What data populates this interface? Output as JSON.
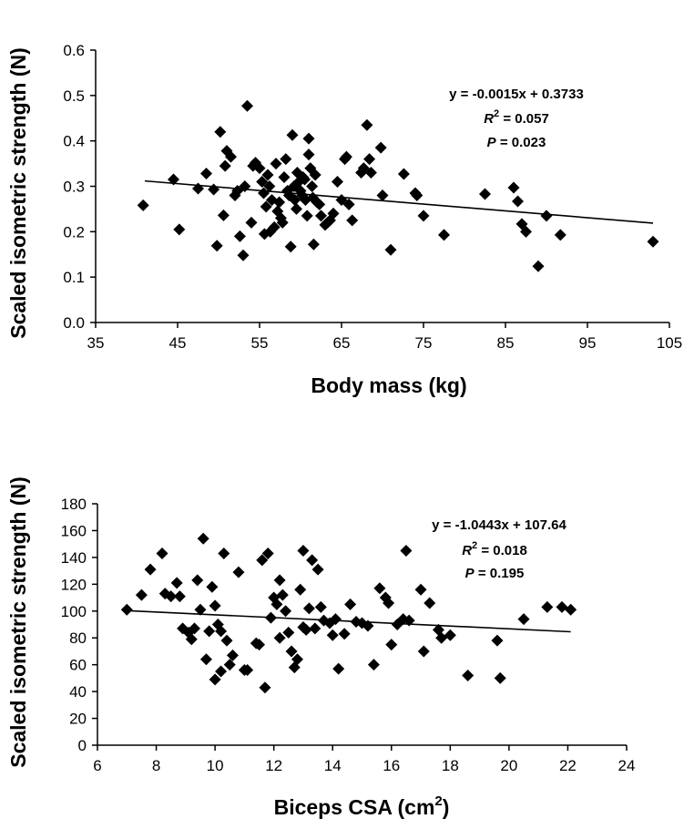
{
  "charts": [
    {
      "type": "scatter",
      "ylabel": "Scaled isometric strength (N)",
      "xlabel": "Body mass (kg)",
      "xlim": [
        35,
        105
      ],
      "ylim": [
        0,
        0.6
      ],
      "xticks": [
        "35",
        "45",
        "55",
        "65",
        "75",
        "85",
        "95",
        "105"
      ],
      "yticks": [
        "0.0",
        "0.1",
        "0.2",
        "0.3",
        "0.4",
        "0.5",
        "0.6"
      ],
      "equation": "y = -0.0015x + 0.3733",
      "r2_prefix": "R",
      "r2_sup": "2",
      "r2_value": " = 0.057",
      "p_prefix": "P",
      "p_value": " = 0.023",
      "trendline": {
        "slope": -0.0015,
        "intercept": 0.3733,
        "x_from": 41,
        "x_to": 103
      },
      "points": [
        [
          40.8,
          0.258
        ],
        [
          44.5,
          0.315
        ],
        [
          45.2,
          0.205
        ],
        [
          47.5,
          0.295
        ],
        [
          48.5,
          0.328
        ],
        [
          49.4,
          0.293
        ],
        [
          49.8,
          0.169
        ],
        [
          50.2,
          0.42
        ],
        [
          50.6,
          0.236
        ],
        [
          50.8,
          0.345
        ],
        [
          51.0,
          0.378
        ],
        [
          51.5,
          0.365
        ],
        [
          52.0,
          0.28
        ],
        [
          52.3,
          0.29
        ],
        [
          52.6,
          0.19
        ],
        [
          53.0,
          0.148
        ],
        [
          53.2,
          0.3
        ],
        [
          53.5,
          0.477
        ],
        [
          54.0,
          0.22
        ],
        [
          54.2,
          0.345
        ],
        [
          54.5,
          0.352
        ],
        [
          55.0,
          0.34
        ],
        [
          55.3,
          0.31
        ],
        [
          55.5,
          0.285
        ],
        [
          55.6,
          0.195
        ],
        [
          55.8,
          0.255
        ],
        [
          56.0,
          0.325
        ],
        [
          56.2,
          0.3
        ],
        [
          56.3,
          0.2
        ],
        [
          56.5,
          0.27
        ],
        [
          56.8,
          0.21
        ],
        [
          57.0,
          0.35
        ],
        [
          57.2,
          0.245
        ],
        [
          57.4,
          0.265
        ],
        [
          57.6,
          0.23
        ],
        [
          57.8,
          0.22
        ],
        [
          58.0,
          0.32
        ],
        [
          58.2,
          0.36
        ],
        [
          58.4,
          0.29
        ],
        [
          58.6,
          0.28
        ],
        [
          58.8,
          0.167
        ],
        [
          59.0,
          0.413
        ],
        [
          59.2,
          0.3
        ],
        [
          59.3,
          0.27
        ],
        [
          59.5,
          0.25
        ],
        [
          59.6,
          0.33
        ],
        [
          59.8,
          0.31
        ],
        [
          60.0,
          0.29
        ],
        [
          60.2,
          0.28
        ],
        [
          60.3,
          0.32
        ],
        [
          60.5,
          0.315
        ],
        [
          60.6,
          0.27
        ],
        [
          60.8,
          0.235
        ],
        [
          61.0,
          0.405
        ],
        [
          61.0,
          0.37
        ],
        [
          61.2,
          0.34
        ],
        [
          61.4,
          0.3
        ],
        [
          61.5,
          0.275
        ],
        [
          61.6,
          0.172
        ],
        [
          61.8,
          0.325
        ],
        [
          62.0,
          0.265
        ],
        [
          62.3,
          0.26
        ],
        [
          62.5,
          0.235
        ],
        [
          63.0,
          0.215
        ],
        [
          63.3,
          0.22
        ],
        [
          63.6,
          0.225
        ],
        [
          64.0,
          0.24
        ],
        [
          64.5,
          0.31
        ],
        [
          65.0,
          0.27
        ],
        [
          65.4,
          0.36
        ],
        [
          65.6,
          0.365
        ],
        [
          65.9,
          0.26
        ],
        [
          66.3,
          0.225
        ],
        [
          67.4,
          0.33
        ],
        [
          67.7,
          0.34
        ],
        [
          68.1,
          0.435
        ],
        [
          68.4,
          0.36
        ],
        [
          68.6,
          0.33
        ],
        [
          69.8,
          0.385
        ],
        [
          70.0,
          0.28
        ],
        [
          71.0,
          0.16
        ],
        [
          72.6,
          0.327
        ],
        [
          74.0,
          0.285
        ],
        [
          74.2,
          0.28
        ],
        [
          75.0,
          0.235
        ],
        [
          77.5,
          0.193
        ],
        [
          82.5,
          0.283
        ],
        [
          86.0,
          0.297
        ],
        [
          86.5,
          0.267
        ],
        [
          87.0,
          0.217
        ],
        [
          87.5,
          0.2
        ],
        [
          89.0,
          0.124
        ],
        [
          90.0,
          0.235
        ],
        [
          91.7,
          0.193
        ],
        [
          103.0,
          0.178
        ]
      ]
    },
    {
      "type": "scatter",
      "ylabel": "Scaled isometric strength (N)",
      "xlabel_main": "Biceps CSA (cm",
      "xlabel_sup": "2",
      "xlabel_end": ")",
      "xlim": [
        6,
        24
      ],
      "ylim": [
        0,
        180
      ],
      "xticks": [
        "6",
        "8",
        "10",
        "12",
        "14",
        "16",
        "18",
        "20",
        "22",
        "24"
      ],
      "yticks": [
        "0",
        "20",
        "40",
        "60",
        "80",
        "100",
        "120",
        "140",
        "160",
        "180"
      ],
      "equation": "y = -1.0443x + 107.64",
      "r2_prefix": "R",
      "r2_sup": "2",
      "r2_value": " = 0.018",
      "p_prefix": "P",
      "p_value": " = 0.195",
      "trendline": {
        "slope": -1.0443,
        "intercept": 107.64,
        "x_from": 7,
        "x_to": 22.1
      },
      "points": [
        [
          7.0,
          101
        ],
        [
          7.5,
          112
        ],
        [
          7.8,
          131
        ],
        [
          8.2,
          143
        ],
        [
          8.3,
          113
        ],
        [
          8.5,
          111
        ],
        [
          8.7,
          121
        ],
        [
          8.8,
          111
        ],
        [
          8.9,
          87
        ],
        [
          9.1,
          84
        ],
        [
          9.2,
          79
        ],
        [
          9.3,
          87
        ],
        [
          9.4,
          123
        ],
        [
          9.5,
          101
        ],
        [
          9.6,
          154
        ],
        [
          9.7,
          64
        ],
        [
          9.8,
          85
        ],
        [
          9.9,
          118
        ],
        [
          10.0,
          104
        ],
        [
          10.0,
          49
        ],
        [
          10.1,
          90
        ],
        [
          10.2,
          55
        ],
        [
          10.2,
          85
        ],
        [
          10.3,
          143
        ],
        [
          10.4,
          78
        ],
        [
          10.5,
          60
        ],
        [
          10.6,
          67
        ],
        [
          10.8,
          129
        ],
        [
          11.0,
          56
        ],
        [
          11.1,
          56
        ],
        [
          11.4,
          76
        ],
        [
          11.5,
          75
        ],
        [
          11.6,
          138
        ],
        [
          11.7,
          43
        ],
        [
          11.8,
          143
        ],
        [
          11.9,
          95
        ],
        [
          12.0,
          110
        ],
        [
          12.1,
          105
        ],
        [
          12.2,
          123
        ],
        [
          12.2,
          80
        ],
        [
          12.3,
          112
        ],
        [
          12.4,
          100
        ],
        [
          12.5,
          84
        ],
        [
          12.6,
          70
        ],
        [
          12.7,
          58
        ],
        [
          12.8,
          64
        ],
        [
          12.9,
          116
        ],
        [
          13.0,
          88
        ],
        [
          13.0,
          145
        ],
        [
          13.1,
          86
        ],
        [
          13.2,
          102
        ],
        [
          13.3,
          138
        ],
        [
          13.4,
          87
        ],
        [
          13.5,
          131
        ],
        [
          13.6,
          103
        ],
        [
          13.7,
          93
        ],
        [
          13.9,
          91
        ],
        [
          14.0,
          82
        ],
        [
          14.1,
          94
        ],
        [
          14.2,
          57
        ],
        [
          14.4,
          83
        ],
        [
          14.6,
          105
        ],
        [
          14.8,
          92
        ],
        [
          15.0,
          91
        ],
        [
          15.2,
          89
        ],
        [
          15.4,
          60
        ],
        [
          15.6,
          117
        ],
        [
          15.8,
          110
        ],
        [
          15.9,
          106
        ],
        [
          16.0,
          75
        ],
        [
          16.2,
          90
        ],
        [
          16.4,
          94
        ],
        [
          16.5,
          145
        ],
        [
          16.6,
          93
        ],
        [
          17.0,
          116
        ],
        [
          17.1,
          70
        ],
        [
          17.3,
          106
        ],
        [
          17.6,
          86
        ],
        [
          17.7,
          80
        ],
        [
          18.0,
          82
        ],
        [
          18.6,
          52
        ],
        [
          19.6,
          78
        ],
        [
          19.7,
          50
        ],
        [
          20.5,
          94
        ],
        [
          21.3,
          103
        ],
        [
          21.8,
          103
        ],
        [
          22.1,
          101
        ]
      ]
    }
  ]
}
